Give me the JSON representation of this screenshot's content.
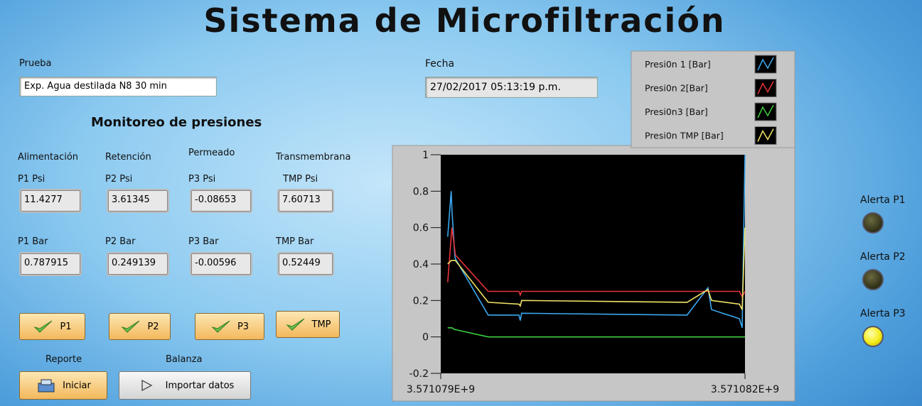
{
  "title": "Sistema de Microfiltración",
  "prueba": {
    "label": "Prueba",
    "value": "Exp. Agua destilada  N8 30 min"
  },
  "fecha": {
    "label": "Fecha",
    "value": "27/02/2017 05:13:19 p.m."
  },
  "monitor_heading": "Monitoreo de presiones",
  "columns": [
    {
      "group": "Alimentación",
      "psi_label": "P1 Psi",
      "psi": 11.4277,
      "bar_label": "P1 Bar",
      "bar": 0.787915,
      "button": "P1"
    },
    {
      "group": "Retención",
      "psi_label": "P2 Psi",
      "psi": 3.61345,
      "bar_label": "P2 Bar",
      "bar": 0.249139,
      "button": "P2"
    },
    {
      "group": "Permeado",
      "psi_label": "P3 Psi",
      "psi": -0.08653,
      "bar_label": "P3 Bar",
      "bar": -0.00596,
      "button": "P3"
    },
    {
      "group": "Transmembrana",
      "psi_label": "TMP Psi",
      "psi": 7.60713,
      "bar_label": "TMP Bar",
      "bar": 0.52449,
      "button": "TMP"
    }
  ],
  "reporte": {
    "label": "Reporte",
    "button": "Iniciar"
  },
  "balanza": {
    "label": "Balanza",
    "button": "Importar datos"
  },
  "alerts": [
    {
      "label": "Alerta P1",
      "on": false
    },
    {
      "label": "Alerta P2",
      "on": false
    },
    {
      "label": "Alerta P3",
      "on": true
    }
  ],
  "chart_data": {
    "type": "line",
    "x": [
      3571079069,
      3571079103,
      3571079110,
      3571079138,
      3571079144,
      3571079468,
      3571079771,
      3571079784,
      3571079798,
      3571081429,
      3571081635,
      3571081670,
      3571081945,
      3571081972,
      3571082000
    ],
    "series": [
      {
        "name": "Presi0n 1 [Bar]",
        "color": "#3aa8f0",
        "values": [
          0.55,
          0.8,
          0.7,
          0.45,
          0.43,
          0.12,
          0.12,
          0.09,
          0.13,
          0.12,
          0.27,
          0.15,
          0.1,
          0.05,
          1.0
        ]
      },
      {
        "name": "Presi0n 2[Bar]",
        "color": "#e8333a",
        "values": [
          0.3,
          0.55,
          0.6,
          0.48,
          0.45,
          0.25,
          0.25,
          0.23,
          0.25,
          0.25,
          0.25,
          0.25,
          0.25,
          0.22,
          0.25
        ]
      },
      {
        "name": "Presi0n3  [Bar]",
        "color": "#3ccf3c",
        "values": [
          0.05,
          0.05,
          0.05,
          0.04,
          0.04,
          0.0,
          0.0,
          0.0,
          0.0,
          0.0,
          0.0,
          0.0,
          0.0,
          0.0,
          0.0
        ]
      },
      {
        "name": "Presi0n TMP [Bar]",
        "color": "#f2e466",
        "values": [
          0.4,
          0.42,
          0.42,
          0.42,
          0.42,
          0.19,
          0.18,
          0.17,
          0.2,
          0.19,
          0.26,
          0.2,
          0.18,
          0.15,
          0.6
        ]
      }
    ],
    "xlim": [
      3571079000,
      3571082000
    ],
    "xticks": [
      {
        "value": 3571079000,
        "label": "3.571079E+9"
      },
      {
        "value": 3571082000,
        "label": "3.571082E+9"
      }
    ],
    "ylim": [
      -0.2,
      1
    ],
    "yticks": [
      -0.2,
      0,
      0.2,
      0.4,
      0.6,
      0.8,
      1
    ],
    "grid": false
  }
}
